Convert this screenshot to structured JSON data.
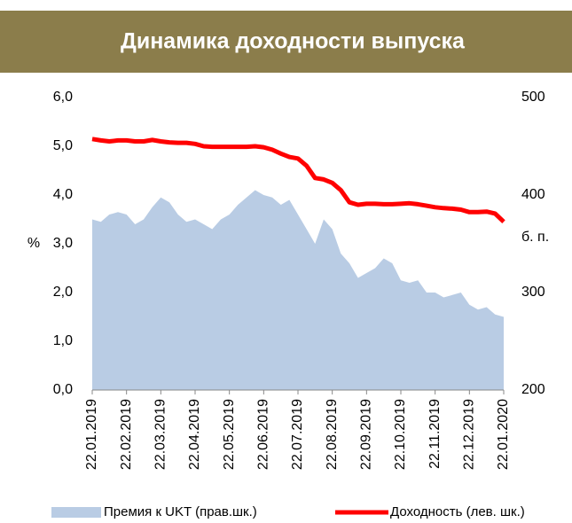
{
  "chart_data": {
    "type": "line",
    "title": "Динамика доходности выпуска",
    "y_label": "%",
    "y2_label": "б. п.",
    "categories": [
      "22.01.2019",
      null,
      null,
      null,
      "22.02.2019",
      null,
      null,
      null,
      "22.03.2019",
      null,
      null,
      null,
      "22.04.2019",
      null,
      null,
      null,
      "22.05.2019",
      null,
      null,
      null,
      "22.06.2019",
      null,
      null,
      null,
      "22.07.2019",
      null,
      null,
      null,
      "22.08.2019",
      null,
      null,
      null,
      "22.09.2019",
      null,
      null,
      null,
      "22.10.2019",
      null,
      null,
      null,
      "22.11.2019",
      null,
      null,
      null,
      "22.12.2019",
      null,
      null,
      null,
      "22.01.2020"
    ],
    "ylim": [
      0,
      6
    ],
    "yticks": [
      {
        "value": 0,
        "label": "0,0"
      },
      {
        "value": 1,
        "label": "1,0"
      },
      {
        "value": 2,
        "label": "2,0"
      },
      {
        "value": 3,
        "label": "3,0"
      },
      {
        "value": 4,
        "label": "4,0"
      },
      {
        "value": 5,
        "label": "5,0"
      },
      {
        "value": 6,
        "label": "6,0"
      }
    ],
    "y2lim": [
      200,
      500
    ],
    "y2ticks": [
      200,
      300,
      400,
      500
    ],
    "series": [
      {
        "name": "Премия к UKT (прав.шк.)",
        "color": "#b9cce4",
        "axis": "y2",
        "kind": "area",
        "values": [
          375,
          372.5,
          380,
          382.5,
          380,
          370,
          375,
          387.5,
          397.5,
          392.5,
          380,
          372.5,
          375,
          370,
          365,
          375,
          380,
          390,
          397.5,
          405,
          400,
          397.5,
          390,
          395,
          380,
          365,
          350,
          375,
          365,
          340,
          330,
          315,
          320,
          325,
          335,
          330,
          312.5,
          310,
          312.5,
          300,
          300,
          295,
          297.5,
          300,
          287.5,
          282.5,
          285,
          277.5,
          275
        ]
      },
      {
        "name": "Доходность (лев. шк.)",
        "color": "#ff0000",
        "kind": "line",
        "values": [
          5.15,
          5.12,
          5.1,
          5.12,
          5.12,
          5.1,
          5.1,
          5.13,
          5.1,
          5.08,
          5.07,
          5.07,
          5.05,
          5.0,
          4.99,
          4.99,
          4.99,
          4.99,
          4.99,
          5.0,
          4.98,
          4.93,
          4.85,
          4.78,
          4.75,
          4.6,
          4.35,
          4.32,
          4.25,
          4.1,
          3.85,
          3.8,
          3.82,
          3.82,
          3.81,
          3.81,
          3.82,
          3.83,
          3.81,
          3.78,
          3.75,
          3.73,
          3.72,
          3.7,
          3.65,
          3.65,
          3.66,
          3.62,
          3.45
        ]
      }
    ]
  }
}
